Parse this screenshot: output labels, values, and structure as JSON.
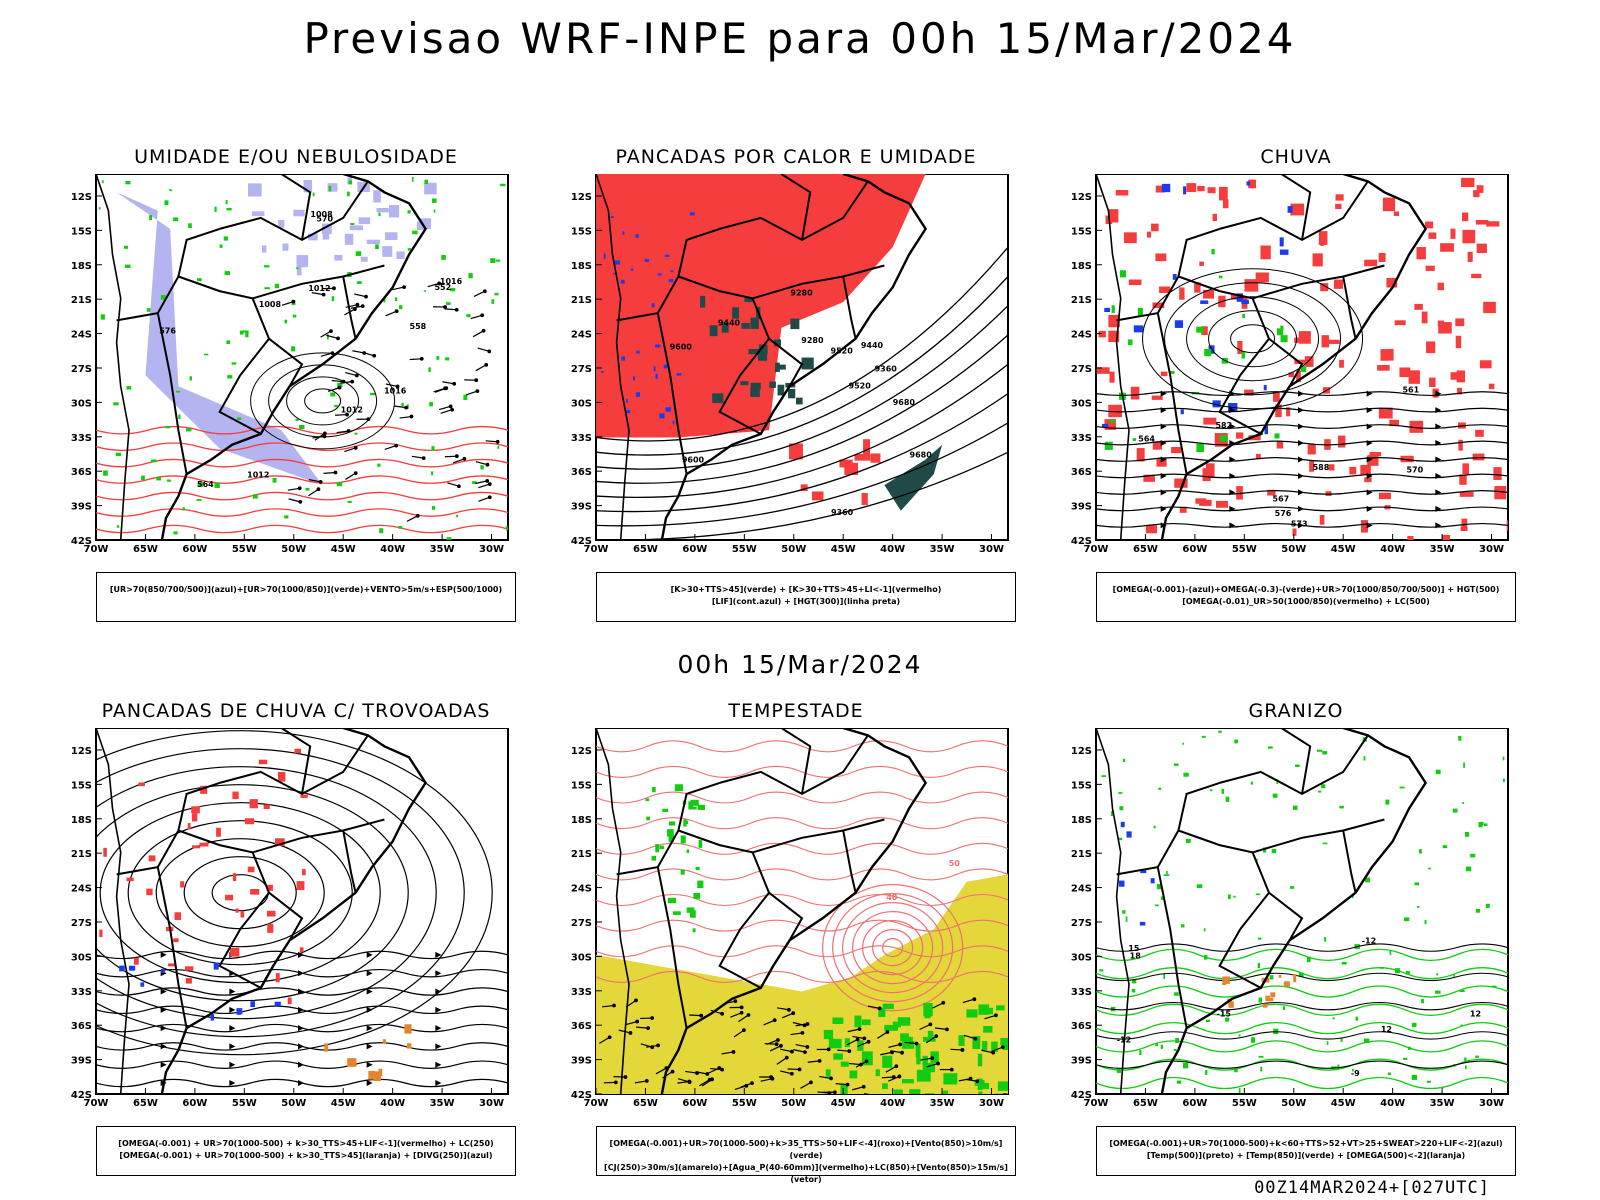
{
  "header": {
    "title": "Previsao WRF-INPE  para 00h 15/Mar/2024",
    "middle_date": "00h 15/Mar/2024",
    "footer": "00Z14MAR2024+[027UTC]"
  },
  "axes": {
    "lat_labels": [
      "12S",
      "15S",
      "18S",
      "21S",
      "24S",
      "27S",
      "30S",
      "33S",
      "36S",
      "39S",
      "42S"
    ],
    "lon_labels": [
      "70W",
      "65W",
      "60W",
      "55W",
      "50W",
      "45W",
      "40W",
      "35W",
      "30W"
    ]
  },
  "panels": [
    {
      "id": "umidade",
      "title": "UMIDADE E/OU NEBULOSIDADE",
      "legend": [
        "[UR>70(850/700/500)](azul)+[UR>70(1000/850)](verde)+VENTO>5m/s+ESP(500/1000)"
      ],
      "labels": [
        "1012",
        "1012",
        "1008",
        "1016",
        "1016",
        "1012",
        "1008",
        "570",
        "576",
        "564",
        "558",
        "552"
      ]
    },
    {
      "id": "pancadas-calor",
      "title": "PANCADAS POR CALOR E UMIDADE",
      "legend": [
        "[K>30+TTS>45](verde) + [K>30+TTS>45+LI<-1](vermelho)",
        "[LIF](cont.azul) + [HGT(300)](linha preta)"
      ],
      "labels": [
        "9680",
        "9680",
        "9600",
        "9520",
        "9440",
        "9360",
        "9280",
        "9600",
        "9520",
        "9440",
        "9360",
        "9280"
      ]
    },
    {
      "id": "chuva",
      "title": "CHUVA",
      "legend": [
        "[OMEGA(-0.001)-(azul)+OMEGA(-0.3)-(verde)+UR>70(1000/850/700/500)] + HGT(500)",
        "[OMEGA(-0.01)_UR>50(1000/850)(vermelho) + LC(500)"
      ],
      "labels": [
        "588",
        "582",
        "576",
        "573",
        "570",
        "567",
        "564",
        "561"
      ]
    },
    {
      "id": "pancadas-trovoadas",
      "title": "PANCADAS DE CHUVA C/ TROVOADAS",
      "legend": [
        "[OMEGA(-0.001) + UR>70(1000-500) + k>30_TTS>45+LIF<-1](vermelho) + LC(250)",
        "[OMEGA(-0.001) + UR>70(1000-500) + k>30_TTS>45](laranja) + [DIVG(250)](azul)"
      ],
      "labels": []
    },
    {
      "id": "tempestade",
      "title": "TEMPESTADE",
      "legend": [
        "[OMEGA(-0.001)+UR>70(1000-500)+k>35_TTS>50+LIF<-4](roxo)+[Vento(850)>10m/s](verde)",
        "[CJ(250)>30m/s](amarelo)+[Agua_P(40-60mm)](vermelho)+LC(850)+[Vento(850)>15m/s](vetor)"
      ],
      "labels": [
        "40",
        "50"
      ]
    },
    {
      "id": "granizo",
      "title": "GRANIZO",
      "legend": [
        "[OMEGA(-0.001)+UR>70(1000-500)+k<60+TTS>52+VT>25+SWEAT>220+LIF<-2](azul)",
        "[Temp(500)](preto) + [Temp(850)](verde) + [OMEGA(500)<-2](laranja)"
      ],
      "labels": [
        "-12",
        "-15",
        "-12",
        "-9",
        "12",
        "12",
        "15",
        "18"
      ]
    }
  ],
  "colors": {
    "red": "#f53d3d",
    "green": "#11cc11",
    "blue": "#1a3cf0",
    "lavender": "#b4b4f0",
    "darkteal": "#1f4a47",
    "yellow": "#e3d73a",
    "orange": "#e3852d",
    "salmon": "#f07070"
  }
}
